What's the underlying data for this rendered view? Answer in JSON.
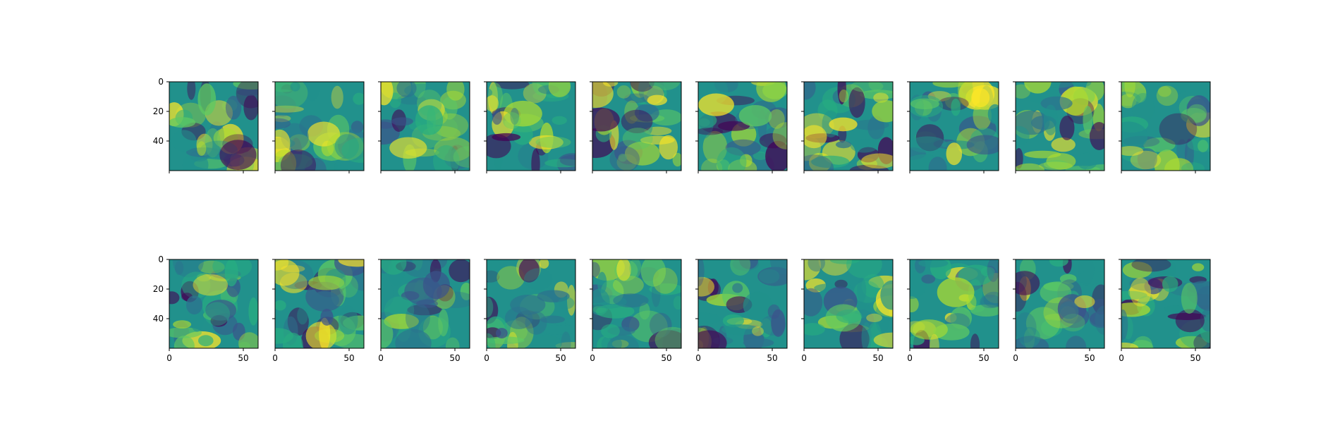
{
  "chart_data": {
    "type": "heatmap",
    "colormap": "viridis",
    "colors": {
      "low": "#440154",
      "mid": "#21918c",
      "high": "#fde725",
      "axis": "#000000",
      "background": "#ffffff"
    },
    "grid": false,
    "legend": "none",
    "layout": {
      "rows": 2,
      "cols": 10,
      "sharex": true,
      "sharey": true
    },
    "image_shape": [
      60,
      60
    ],
    "xlim": [
      0,
      60
    ],
    "ylim": [
      60,
      0
    ],
    "xticks": [
      0,
      50
    ],
    "yticks": [
      0,
      20,
      40
    ],
    "xticklabels": [
      "0",
      "50"
    ],
    "yticklabels": [
      "0",
      "20",
      "40"
    ],
    "xtick_labels_on_rows": [
      2
    ],
    "ytick_labels_on_cols": [
      1
    ],
    "title": "",
    "xlabel": "",
    "ylabel": ""
  }
}
